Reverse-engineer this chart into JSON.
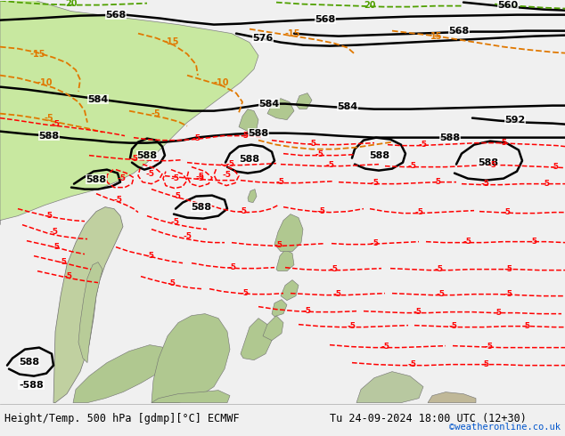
{
  "title_left": "Height/Temp. 500 hPa [gdmp][°C] ECMWF",
  "title_right": "Tu 24-09-2024 18:00 UTC (12+30)",
  "credit": "©weatheronline.co.uk",
  "ocean_color": "#d8d8d8",
  "land_green_color": "#c8e8a0",
  "land_gray_color": "#b8b8b8",
  "footer_bg": "#f0f0f0",
  "border_color": "#808080"
}
